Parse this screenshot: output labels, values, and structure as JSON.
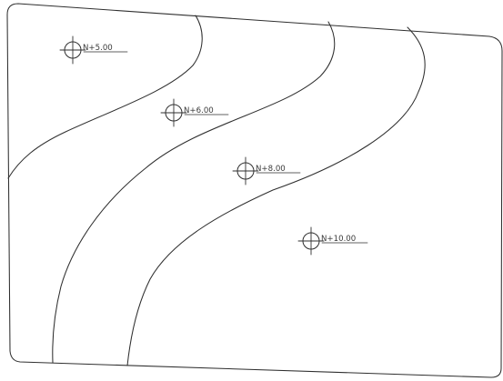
{
  "diagram": {
    "elevation_markers": [
      {
        "label": "N+5.00"
      },
      {
        "label": "N+6.00"
      },
      {
        "label": "N+8.00"
      },
      {
        "label": "N+10.00"
      }
    ]
  }
}
